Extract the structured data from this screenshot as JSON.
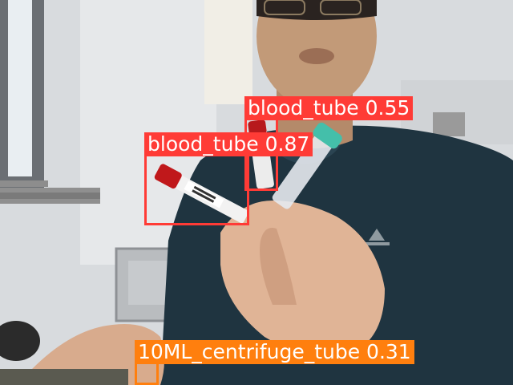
{
  "colors": {
    "blood_tube_box": "#ff3b36",
    "centrifuge_tube_box": "#ff7f0e"
  },
  "detections": [
    {
      "class_label": "blood_tube",
      "confidence": "0.55",
      "color_key": "blood_tube_box"
    },
    {
      "class_label": "blood_tube",
      "confidence": "0.87",
      "color_key": "blood_tube_box"
    },
    {
      "class_label": "10ML_centrifuge_tube",
      "confidence": "0.31",
      "color_key": "centrifuge_tube_box"
    }
  ],
  "detection_texts": [
    "blood_tube 0.55",
    "blood_tube 0.87",
    "10ML_centrifuge_tube 0.31"
  ]
}
